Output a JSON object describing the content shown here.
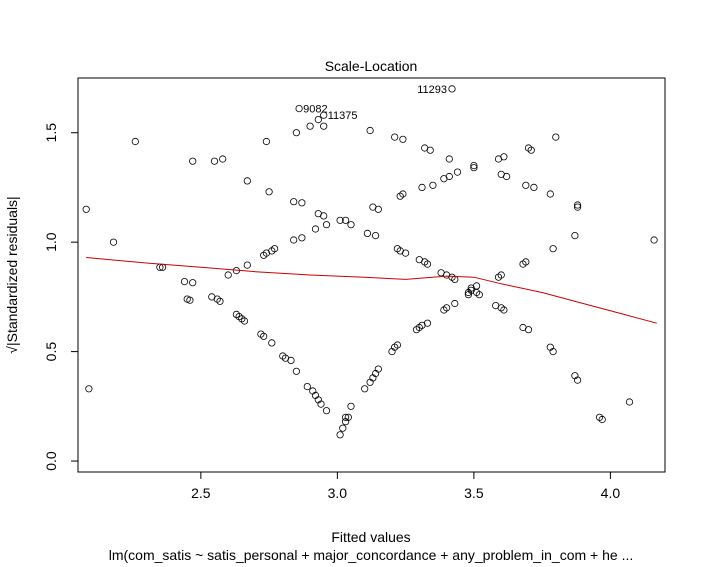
{
  "chart_data": {
    "type": "scatter",
    "title": "Scale-Location",
    "xlabel": "Fitted values",
    "ylabel": "√|Standardized residuals|",
    "subtitle": "lm(com_satis ~ satis_personal + major_concordance + any_problem_in_com + he ...",
    "xlim": [
      2.05,
      4.2
    ],
    "ylim": [
      -0.05,
      1.75
    ],
    "xticks": [
      "2.5",
      "3.0",
      "3.5",
      "4.0"
    ],
    "yticks": [
      "0.0",
      "0.5",
      "1.0",
      "1.5"
    ],
    "grid": false,
    "colors": {
      "points": "#000000",
      "smooth": "#cc0000"
    },
    "smoother": {
      "name": "smooth",
      "x": [
        2.08,
        2.3,
        2.5,
        2.7,
        2.9,
        3.1,
        3.25,
        3.4,
        3.5,
        3.6,
        3.75,
        3.9,
        4.05,
        4.17
      ],
      "y": [
        0.93,
        0.905,
        0.885,
        0.865,
        0.85,
        0.84,
        0.83,
        0.845,
        0.84,
        0.81,
        0.77,
        0.72,
        0.67,
        0.63
      ]
    },
    "annotations": [
      {
        "label": "11293",
        "x": 3.42,
        "y": 1.7
      },
      {
        "label": "9082",
        "x": 2.86,
        "y": 1.61
      },
      {
        "label": "11375",
        "x": 2.95,
        "y": 1.58
      }
    ],
    "points": [
      [
        2.08,
        1.15
      ],
      [
        2.09,
        0.33
      ],
      [
        2.18,
        1.0
      ],
      [
        2.26,
        1.46
      ],
      [
        2.35,
        0.885
      ],
      [
        2.36,
        0.885
      ],
      [
        2.44,
        0.82
      ],
      [
        2.45,
        0.74
      ],
      [
        2.46,
        0.735
      ],
      [
        2.47,
        0.815
      ],
      [
        2.47,
        1.37
      ],
      [
        2.54,
        0.75
      ],
      [
        2.55,
        1.37
      ],
      [
        2.56,
        0.74
      ],
      [
        2.57,
        0.73
      ],
      [
        2.58,
        1.38
      ],
      [
        2.6,
        0.85
      ],
      [
        2.63,
        0.67
      ],
      [
        2.63,
        0.87
      ],
      [
        2.64,
        0.66
      ],
      [
        2.65,
        0.65
      ],
      [
        2.66,
        0.64
      ],
      [
        2.67,
        0.895
      ],
      [
        2.67,
        1.28
      ],
      [
        2.72,
        0.58
      ],
      [
        2.73,
        0.57
      ],
      [
        2.73,
        0.94
      ],
      [
        2.74,
        0.95
      ],
      [
        2.74,
        1.46
      ],
      [
        2.75,
        1.23
      ],
      [
        2.76,
        0.54
      ],
      [
        2.76,
        0.96
      ],
      [
        2.77,
        0.97
      ],
      [
        2.8,
        0.48
      ],
      [
        2.81,
        0.47
      ],
      [
        2.83,
        0.46
      ],
      [
        2.84,
        1.01
      ],
      [
        2.84,
        1.185
      ],
      [
        2.85,
        0.41
      ],
      [
        2.85,
        1.5
      ],
      [
        2.86,
        1.61
      ],
      [
        2.87,
        1.02
      ],
      [
        2.87,
        1.18
      ],
      [
        2.89,
        0.34
      ],
      [
        2.9,
        1.53
      ],
      [
        2.91,
        0.32
      ],
      [
        2.92,
        0.3
      ],
      [
        2.92,
        1.06
      ],
      [
        2.93,
        1.13
      ],
      [
        2.93,
        0.28
      ],
      [
        2.93,
        1.56
      ],
      [
        2.94,
        0.26
      ],
      [
        2.95,
        1.58
      ],
      [
        2.95,
        1.53
      ],
      [
        2.95,
        1.12
      ],
      [
        2.96,
        0.23
      ],
      [
        2.96,
        1.08
      ],
      [
        3.01,
        0.12
      ],
      [
        3.01,
        1.1
      ],
      [
        3.02,
        0.15
      ],
      [
        3.03,
        0.2
      ],
      [
        3.03,
        0.18
      ],
      [
        3.03,
        1.1
      ],
      [
        3.04,
        0.2
      ],
      [
        3.05,
        0.25
      ],
      [
        3.05,
        1.08
      ],
      [
        3.1,
        0.33
      ],
      [
        3.11,
        1.04
      ],
      [
        3.12,
        0.36
      ],
      [
        3.12,
        1.51
      ],
      [
        3.13,
        0.38
      ],
      [
        3.13,
        1.16
      ],
      [
        3.14,
        0.4
      ],
      [
        3.14,
        1.03
      ],
      [
        3.15,
        0.42
      ],
      [
        3.15,
        1.15
      ],
      [
        3.2,
        0.5
      ],
      [
        3.21,
        0.52
      ],
      [
        3.21,
        1.48
      ],
      [
        3.22,
        0.53
      ],
      [
        3.22,
        0.97
      ],
      [
        3.23,
        1.21
      ],
      [
        3.23,
        0.96
      ],
      [
        3.24,
        1.47
      ],
      [
        3.24,
        1.22
      ],
      [
        3.25,
        0.95
      ],
      [
        3.29,
        0.6
      ],
      [
        3.3,
        0.61
      ],
      [
        3.3,
        0.92
      ],
      [
        3.31,
        0.62
      ],
      [
        3.31,
        1.25
      ],
      [
        3.32,
        0.91
      ],
      [
        3.32,
        1.43
      ],
      [
        3.33,
        0.63
      ],
      [
        3.33,
        0.9
      ],
      [
        3.34,
        1.42
      ],
      [
        3.35,
        1.26
      ],
      [
        3.38,
        0.86
      ],
      [
        3.39,
        0.69
      ],
      [
        3.39,
        1.29
      ],
      [
        3.4,
        0.7
      ],
      [
        3.4,
        0.85
      ],
      [
        3.41,
        1.38
      ],
      [
        3.41,
        1.3
      ],
      [
        3.42,
        1.7
      ],
      [
        3.42,
        0.84
      ],
      [
        3.43,
        0.83
      ],
      [
        3.43,
        0.72
      ],
      [
        3.44,
        1.32
      ],
      [
        3.48,
        0.77
      ],
      [
        3.48,
        0.76
      ],
      [
        3.49,
        0.79
      ],
      [
        3.49,
        0.78
      ],
      [
        3.5,
        1.34
      ],
      [
        3.5,
        1.35
      ],
      [
        3.51,
        0.8
      ],
      [
        3.51,
        0.77
      ],
      [
        3.52,
        0.76
      ],
      [
        3.58,
        0.71
      ],
      [
        3.59,
        0.84
      ],
      [
        3.59,
        1.38
      ],
      [
        3.6,
        0.7
      ],
      [
        3.6,
        0.85
      ],
      [
        3.6,
        1.31
      ],
      [
        3.61,
        0.69
      ],
      [
        3.61,
        1.39
      ],
      [
        3.62,
        1.3
      ],
      [
        3.68,
        0.61
      ],
      [
        3.68,
        0.9
      ],
      [
        3.69,
        0.91
      ],
      [
        3.69,
        1.26
      ],
      [
        3.7,
        1.43
      ],
      [
        3.7,
        0.6
      ],
      [
        3.71,
        1.42
      ],
      [
        3.72,
        1.25
      ],
      [
        3.78,
        1.22
      ],
      [
        3.78,
        0.52
      ],
      [
        3.79,
        0.97
      ],
      [
        3.79,
        0.5
      ],
      [
        3.8,
        1.48
      ],
      [
        3.87,
        0.39
      ],
      [
        3.87,
        1.03
      ],
      [
        3.88,
        0.37
      ],
      [
        3.88,
        1.16
      ],
      [
        3.88,
        1.17
      ],
      [
        3.96,
        0.2
      ],
      [
        3.97,
        0.19
      ],
      [
        4.07,
        0.27
      ],
      [
        4.16,
        1.01
      ]
    ]
  }
}
